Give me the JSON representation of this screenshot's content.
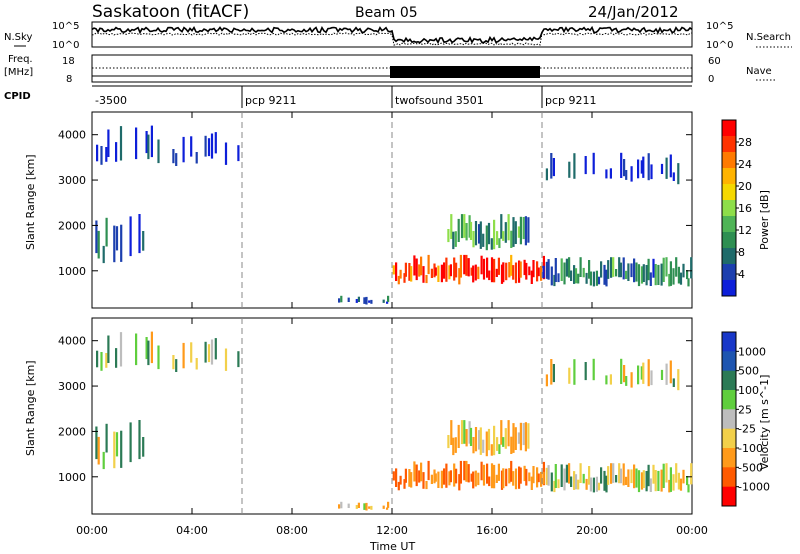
{
  "header": {
    "station": "Saskatoon (fitACF)",
    "beam": "Beam 05",
    "date": "24/Jan/2012"
  },
  "noise_panel": {
    "left_label": "N.Sky",
    "right_label": "N.Search",
    "left_ticks": [
      "10^5",
      "10^0"
    ],
    "right_ticks": [
      "10^5",
      "10^0"
    ]
  },
  "freq_panel": {
    "left_label_1": "Freq.",
    "left_label_2": "[MHz]",
    "right_label": "Nave",
    "left_ticks": [
      "18",
      "8"
    ],
    "right_ticks": [
      "60",
      "0"
    ]
  },
  "cpid_panel": {
    "label": "CPID",
    "segments": [
      {
        "start_hour": 0,
        "end_hour": 6,
        "label": "-3500"
      },
      {
        "start_hour": 6,
        "end_hour": 12,
        "label": "pcp 9211"
      },
      {
        "start_hour": 12,
        "end_hour": 18,
        "label": "twofsound 3501"
      },
      {
        "start_hour": 18,
        "end_hour": 24,
        "label": "pcp 9211"
      }
    ]
  },
  "power_panel": {
    "ylabel": "Slant Range [km]",
    "colorbar_label": "Power [dB]",
    "colorbar_ticks": [
      "28",
      "24",
      "20",
      "16",
      "12",
      "8",
      "4"
    ],
    "colors": [
      "#ff0000",
      "#ff3300",
      "#ff7a00",
      "#ffb300",
      "#f5d800",
      "#8ede4a",
      "#4fb456",
      "#2e8f52",
      "#1f6b6a",
      "#1c3fae",
      "#0d1fd9"
    ]
  },
  "velocity_panel": {
    "ylabel": "Slant Range [km]",
    "colorbar_label": "Velocity [m s^-1]",
    "colorbar_ticks": [
      "1000",
      "500",
      "100",
      "25",
      "-25",
      "-100",
      "-500",
      "-1000"
    ],
    "colors": [
      "#1837c8",
      "#1e55b0",
      "#2b7a55",
      "#5fce3d",
      "#bdbdbd",
      "#f2d04a",
      "#ff9a1a",
      "#ff5a00",
      "#ff0000"
    ]
  },
  "x_axis": {
    "label": "Time UT",
    "ticks": [
      "00:00",
      "04:00",
      "08:00",
      "12:00",
      "16:00",
      "20:00",
      "00:00"
    ]
  },
  "chart_data": {
    "type": "heatmap",
    "title": "Saskatoon (fitACF)  Beam 05  24/Jan/2012",
    "xlabel": "Time UT",
    "ylabel": "Slant Range [km]",
    "x_range_hours": [
      0,
      24
    ],
    "y_range_km": [
      180,
      4500
    ],
    "y_ticks": [
      1000,
      2000,
      3000,
      4000
    ],
    "mode_boundaries_hours": [
      6,
      12,
      18
    ],
    "echo_regions": [
      {
        "name": "ground scatter band",
        "t_start": 0.0,
        "t_end": 2.6,
        "range_start": 1150,
        "range_end": 2300,
        "power_db": 8,
        "velocity": 0
      },
      {
        "name": "sparse scatter",
        "t_start": 0.1,
        "t_end": 6.0,
        "range_start": 3300,
        "range_end": 4200,
        "power_db": 4,
        "velocity": 0
      },
      {
        "name": "E region",
        "t_start": 9.8,
        "t_end": 12.0,
        "range_start": 250,
        "range_end": 450,
        "power_db": 8,
        "velocity": -50
      },
      {
        "name": "main echo",
        "t_start": 12.0,
        "t_end": 18.2,
        "range_start": 700,
        "range_end": 1350,
        "power_db": 26,
        "velocity": -300
      },
      {
        "name": "upper echo",
        "t_start": 14.2,
        "t_end": 17.5,
        "range_start": 1450,
        "range_end": 2250,
        "power_db": 12,
        "velocity": -60
      },
      {
        "name": "evening band",
        "t_start": 18.0,
        "t_end": 24.0,
        "range_start": 650,
        "range_end": 1300,
        "power_db": 10,
        "velocity": 0
      },
      {
        "name": "evening high range",
        "t_start": 18.0,
        "t_end": 24.0,
        "range_start": 2900,
        "range_end": 3600,
        "power_db": 4,
        "velocity": 0
      }
    ],
    "grid": false,
    "legend": "right colorbars"
  }
}
